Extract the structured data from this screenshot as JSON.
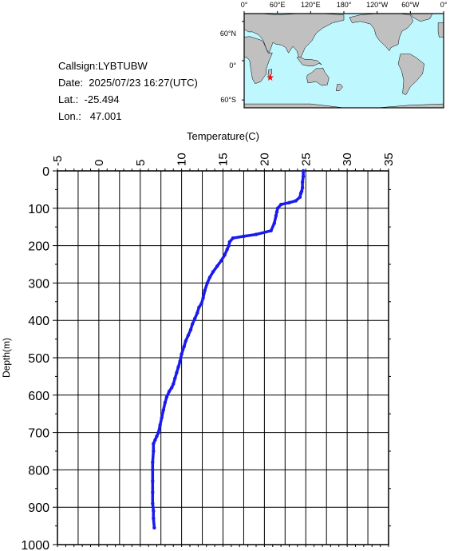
{
  "info": {
    "callsign": "Callsign:LYBTUBW",
    "date": "Date:  2025/07/23 16:27(UTC)",
    "lat": "Lat.:  -25.494",
    "lon": "Lon.:   47.001"
  },
  "map": {
    "top_labels": [
      "0°",
      "60°E",
      "120°E",
      "180°",
      "120°W",
      "60°W",
      "0°"
    ],
    "left_labels": [
      "60°N",
      "0°",
      "60°S"
    ],
    "ocean_color": "#bff7ff",
    "land_color": "#c0c0c0",
    "marker_color": "#ff0000",
    "marker_lon": 47.001,
    "marker_lat": -25.494
  },
  "chart_data": {
    "type": "line",
    "xlabel": "Temperature(C)",
    "ylabel": "Depth(m)",
    "xlim": [
      -5,
      35
    ],
    "ylim": [
      0,
      1000
    ],
    "x_ticks": [
      "-5",
      "0",
      "5",
      "10",
      "15",
      "20",
      "25",
      "30",
      "35"
    ],
    "y_ticks": [
      "0",
      "100",
      "200",
      "300",
      "400",
      "500",
      "600",
      "700",
      "800",
      "900",
      "1000"
    ],
    "grid": true,
    "line_color": "#1a1aee",
    "series": [
      {
        "temperature": [
          24.7,
          24.7,
          24.6,
          24.6,
          24.5,
          24.4,
          24.3,
          23.8,
          23.0,
          22.0,
          21.6,
          21.5,
          21.4,
          21.2,
          20.8,
          19.0,
          17.5,
          16.2,
          15.8,
          15.7,
          15.5,
          15.2,
          14.8,
          14.3,
          13.8,
          13.4,
          13.1,
          12.8,
          12.6,
          12.4,
          12.1,
          11.9,
          11.6,
          11.3,
          11.1,
          10.8,
          10.5,
          10.3,
          10.0,
          9.8,
          9.6,
          9.4,
          9.2,
          9.0,
          8.8,
          8.5,
          8.2,
          8.0,
          7.8,
          7.6,
          7.4,
          7.2,
          7.0,
          6.8,
          6.6,
          6.6,
          6.5,
          6.5,
          6.5,
          6.5,
          6.5,
          6.6,
          6.6,
          6.7
        ],
        "depth": [
          0,
          15,
          30,
          45,
          55,
          60,
          70,
          80,
          85,
          90,
          100,
          110,
          120,
          140,
          160,
          170,
          175,
          180,
          190,
          200,
          210,
          225,
          240,
          255,
          270,
          285,
          300,
          320,
          340,
          355,
          365,
          380,
          395,
          410,
          425,
          440,
          455,
          470,
          490,
          510,
          525,
          540,
          555,
          570,
          580,
          590,
          605,
          620,
          640,
          660,
          680,
          700,
          710,
          720,
          730,
          750,
          780,
          800,
          830,
          860,
          890,
          910,
          930,
          955
        ]
      }
    ]
  }
}
